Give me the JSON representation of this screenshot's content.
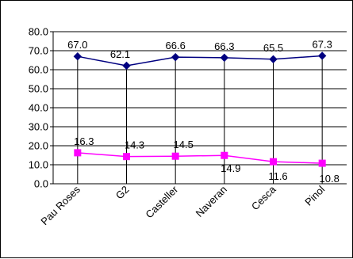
{
  "chart_data": {
    "type": "line",
    "categories": [
      "Pau Roses",
      "G2",
      "Casteller",
      "Naveran",
      "Cesca",
      "Pinol"
    ],
    "series": [
      {
        "values": [
          67.0,
          62.1,
          66.6,
          66.3,
          65.5,
          67.3
        ],
        "color": "#000080",
        "marker": "diamond"
      },
      {
        "values": [
          16.3,
          14.3,
          14.5,
          14.9,
          11.6,
          10.8
        ],
        "color": "#ff00ff",
        "marker": "square"
      }
    ],
    "data_labels": [
      [
        "67.0",
        "62.1",
        "66.6",
        "66.3",
        "65.5",
        "67.3"
      ],
      [
        "16.3",
        "14.3",
        "14.5",
        "14.9",
        "11.6",
        "10.8"
      ]
    ],
    "y_ticks": [
      "0.0",
      "10.0",
      "20.0",
      "30.0",
      "40.0",
      "50.0",
      "60.0",
      "70.0",
      "80.0"
    ],
    "ylim": [
      0,
      80
    ],
    "grid": true,
    "legend": "none",
    "title": "",
    "xlabel": "",
    "ylabel": ""
  }
}
